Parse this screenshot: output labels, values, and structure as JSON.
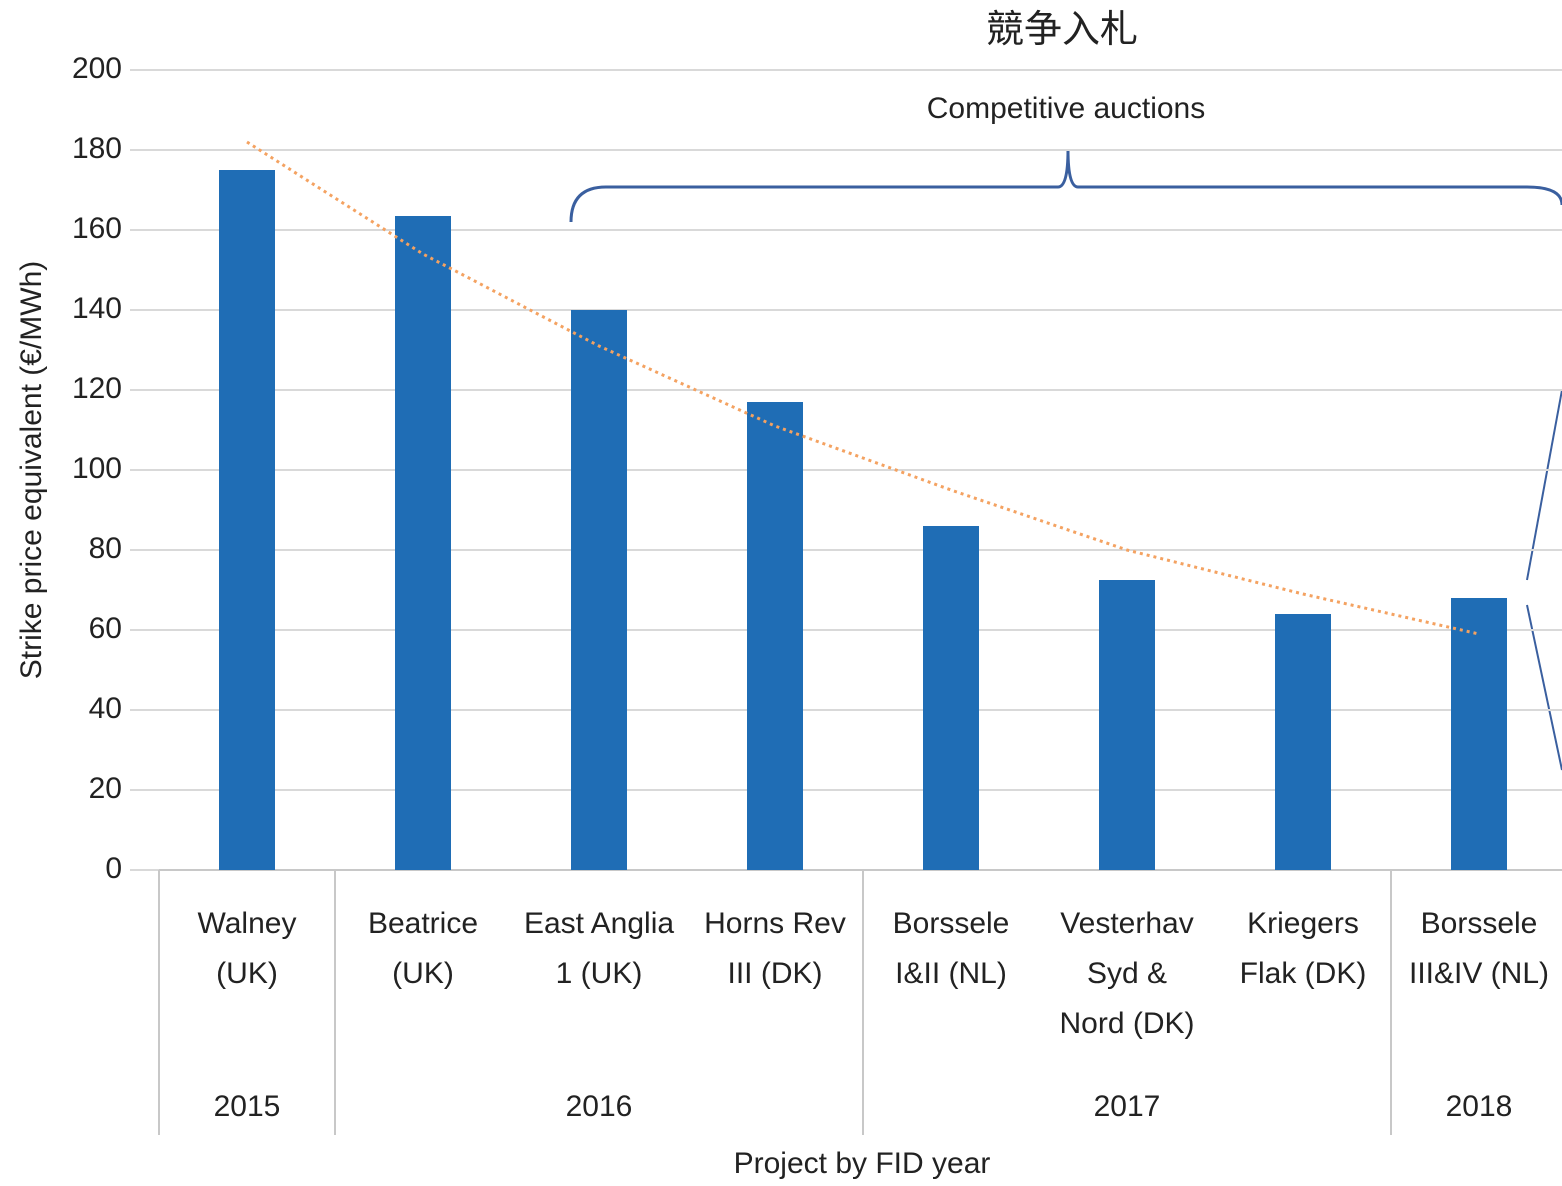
{
  "chart_data": {
    "type": "bar",
    "title": "競争入札",
    "annotation": "Competitive auctions",
    "ylabel": "Strike price equivalent (€/MWh)",
    "xlabel": "Project by FID year",
    "color": "#1f6db5",
    "groups": [
      {
        "label": "2015",
        "categories": [
          [
            "Walney",
            "(UK)"
          ]
        ]
      },
      {
        "label": "2016",
        "categories": [
          [
            "Beatrice",
            "(UK)"
          ],
          [
            "East Anglia",
            "1 (UK)"
          ],
          [
            "Horns Rev",
            "III (DK)"
          ]
        ]
      },
      {
        "label": "2017",
        "categories": [
          [
            "Borssele",
            "I&II (NL)"
          ],
          [
            "Vesterhav",
            "Syd &",
            "Nord (DK)"
          ],
          [
            "Kriegers",
            "Flak (DK)"
          ]
        ]
      },
      {
        "label": "2018",
        "categories": [
          [
            "Borssele",
            "III&IV (NL)"
          ]
        ]
      }
    ],
    "values": [
      175,
      163.5,
      140,
      117,
      86,
      72.5,
      64,
      68
    ],
    "trendline": {
      "color": "#f4a261",
      "values": [
        182,
        154,
        131,
        111,
        95,
        80,
        69,
        59
      ]
    },
    "ylim": [
      0,
      200
    ],
    "yticks": [
      0,
      20,
      40,
      60,
      80,
      100,
      120,
      140,
      160,
      180,
      200
    ],
    "grid": true
  }
}
